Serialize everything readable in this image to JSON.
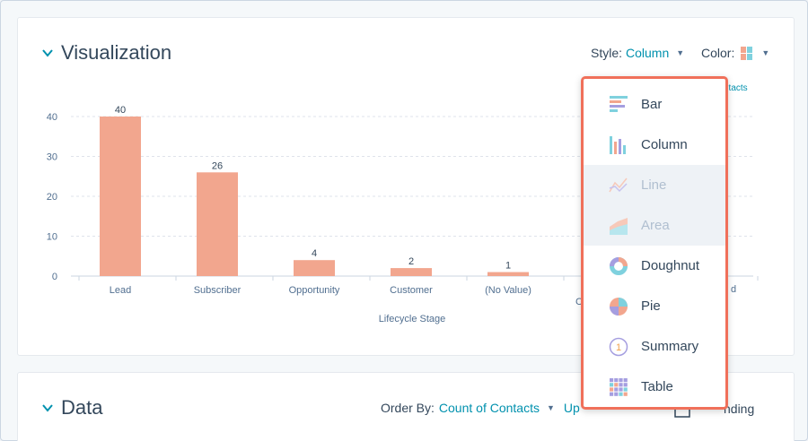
{
  "visualization": {
    "title": "Visualization",
    "style_label": "Style:",
    "style_value": "Column",
    "color_label": "Color:",
    "partial_legend": "ntacts",
    "partial_cat_label": "C",
    "partial_tick_label": "d"
  },
  "chart_data": {
    "type": "bar",
    "categories": [
      "Lead",
      "Subscriber",
      "Opportunity",
      "Customer",
      "(No Value)"
    ],
    "values": [
      40,
      26,
      4,
      2,
      1
    ],
    "xlabel": "Lifecycle Stage",
    "ylim": [
      0,
      40
    ],
    "yticks": [
      0,
      10,
      20,
      30,
      40
    ],
    "bar_color": "#f2a68e",
    "grid": true
  },
  "style_menu": {
    "items": [
      {
        "label": "Bar",
        "icon": "bar-chart-icon",
        "enabled": true
      },
      {
        "label": "Column",
        "icon": "column-chart-icon",
        "enabled": true
      },
      {
        "label": "Line",
        "icon": "line-chart-icon",
        "enabled": false
      },
      {
        "label": "Area",
        "icon": "area-chart-icon",
        "enabled": false
      },
      {
        "label": "Doughnut",
        "icon": "doughnut-chart-icon",
        "enabled": true
      },
      {
        "label": "Pie",
        "icon": "pie-chart-icon",
        "enabled": true
      },
      {
        "label": "Summary",
        "icon": "summary-icon",
        "enabled": true
      },
      {
        "label": "Table",
        "icon": "table-icon",
        "enabled": true
      }
    ]
  },
  "data_section": {
    "title": "Data",
    "order_by_label": "Order By:",
    "order_by_value": "Count of Contacts",
    "partial_up": "Up",
    "partial_sort": "nding"
  },
  "colors": {
    "accent": "#0091ae",
    "highlight": "#f0705a",
    "text": "#33475b"
  }
}
